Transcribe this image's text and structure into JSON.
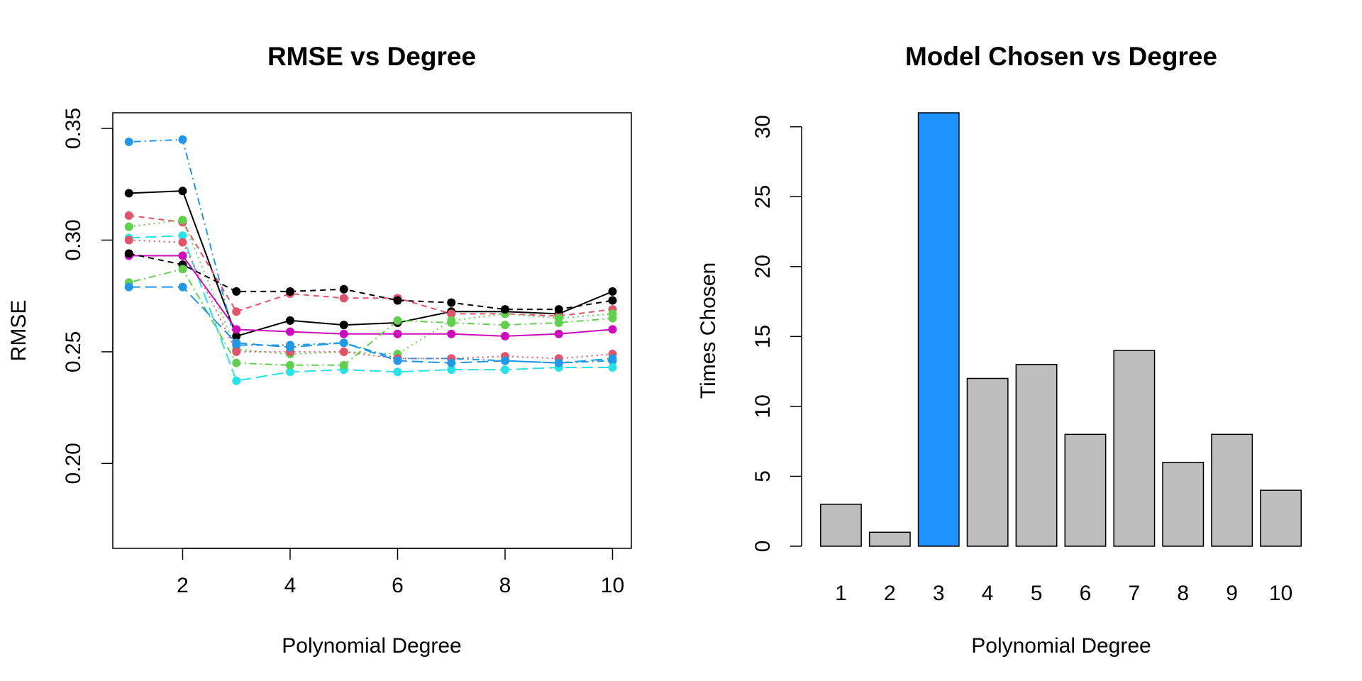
{
  "chart_data": [
    {
      "type": "line",
      "title": "RMSE vs Degree",
      "xlabel": "Polynomial Degree",
      "ylabel": "RMSE",
      "xlim": [
        0.7,
        10.35
      ],
      "ylim": [
        0.162,
        0.357
      ],
      "xticks": [
        2,
        4,
        6,
        8,
        10
      ],
      "yticks": [
        0.2,
        0.25,
        0.3,
        0.35
      ],
      "ytick_labels": [
        "0.20",
        "0.25",
        "0.30",
        "0.35"
      ],
      "grid": false,
      "legend": "none",
      "x": [
        1,
        2,
        3,
        4,
        5,
        6,
        7,
        8,
        9,
        10
      ],
      "series": [
        {
          "color": "#000000",
          "dash": "solid",
          "values": [
            0.321,
            0.322,
            0.257,
            0.264,
            0.262,
            0.263,
            0.268,
            0.268,
            0.267,
            0.277
          ]
        },
        {
          "color": "#DF536B",
          "dash": "dashed",
          "values": [
            0.311,
            0.308,
            0.268,
            0.276,
            0.274,
            0.274,
            0.267,
            0.267,
            0.266,
            0.269
          ]
        },
        {
          "color": "#61D04F",
          "dash": "dotted",
          "values": [
            0.306,
            0.309,
            0.251,
            0.249,
            0.25,
            0.249,
            0.264,
            0.267,
            0.265,
            0.267
          ]
        },
        {
          "color": "#2297E6",
          "dash": "dotdash",
          "values": [
            0.344,
            0.345,
            0.253,
            0.253,
            0.254,
            0.247,
            0.247,
            0.246,
            0.245,
            0.246
          ]
        },
        {
          "color": "#28E2E5",
          "dash": "longdash",
          "values": [
            0.301,
            0.302,
            0.237,
            0.241,
            0.242,
            0.241,
            0.242,
            0.242,
            0.243,
            0.243
          ]
        },
        {
          "color": "#CD0BBC",
          "dash": "solid",
          "values": [
            0.293,
            0.293,
            0.26,
            0.259,
            0.258,
            0.258,
            0.258,
            0.257,
            0.258,
            0.26
          ]
        },
        {
          "color": "#000000",
          "dash": "dashed",
          "values": [
            0.294,
            0.289,
            0.277,
            0.277,
            0.278,
            0.273,
            0.272,
            0.269,
            0.269,
            0.273
          ]
        },
        {
          "color": "#DF536B",
          "dash": "dotted",
          "values": [
            0.3,
            0.299,
            0.25,
            0.25,
            0.25,
            0.247,
            0.247,
            0.248,
            0.247,
            0.249
          ]
        },
        {
          "color": "#61D04F",
          "dash": "dotdash",
          "values": [
            0.281,
            0.287,
            0.245,
            0.244,
            0.244,
            0.264,
            0.263,
            0.262,
            0.263,
            0.265
          ]
        },
        {
          "color": "#2297E6",
          "dash": "longdash",
          "values": [
            0.279,
            0.279,
            0.254,
            0.252,
            0.254,
            0.246,
            0.245,
            0.246,
            0.245,
            0.247
          ]
        }
      ]
    },
    {
      "type": "bar",
      "title": "Model Chosen vs Degree",
      "xlabel": "Polynomial Degree",
      "ylabel": "Times Chosen",
      "categories": [
        "1",
        "2",
        "3",
        "4",
        "5",
        "6",
        "7",
        "8",
        "9",
        "10"
      ],
      "values": [
        3,
        1,
        31,
        12,
        13,
        8,
        14,
        6,
        8,
        4
      ],
      "ylim": [
        0,
        31
      ],
      "yticks": [
        0,
        5,
        10,
        15,
        20,
        25,
        30
      ],
      "highlight_index": 2,
      "bar_color": "#BEBEBE",
      "highlight_color": "#1E90FF",
      "grid": false,
      "legend": "none"
    }
  ]
}
